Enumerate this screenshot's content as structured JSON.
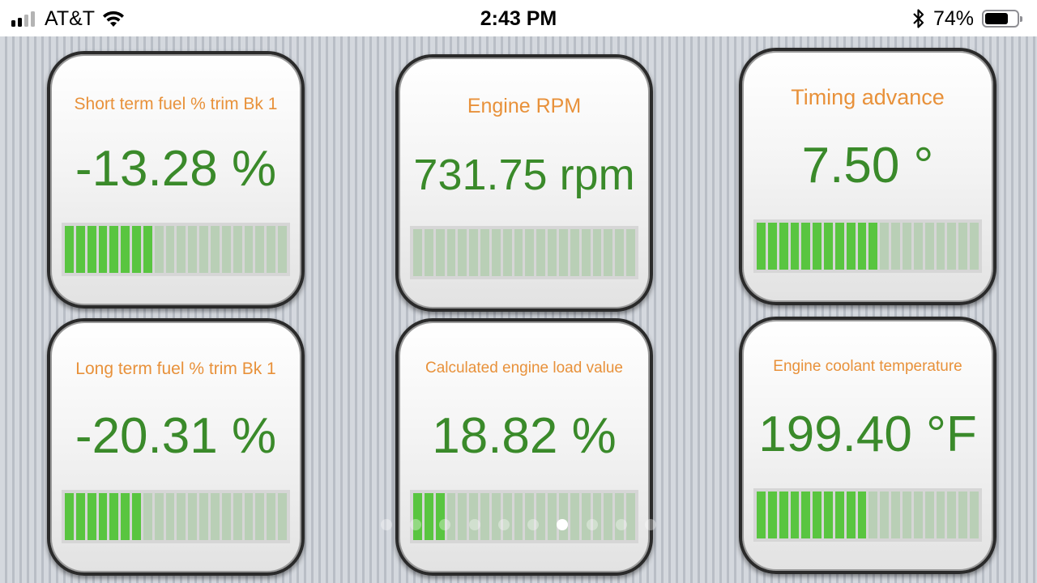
{
  "status_bar": {
    "carrier": "AT&T",
    "time": "2:43 PM",
    "battery_percent": "74%",
    "battery_level": 0.74,
    "signal_bars_active": 2,
    "icons": [
      "signal-icon",
      "wifi-icon",
      "bluetooth-icon",
      "battery-icon"
    ]
  },
  "colors": {
    "title_orange": "#e8913a",
    "value_green": "#3a8a2a",
    "bar_on": "#59c540",
    "bar_off": "#b9cfb6"
  },
  "gauges": [
    {
      "title": "Short term fuel % trim Bk 1",
      "value": "-13.28 %",
      "level_fraction": 0.39
    },
    {
      "title": "Engine RPM",
      "value": "731.75 rpm",
      "level_fraction": 0.0
    },
    {
      "title": "Timing advance",
      "value": "7.50 °",
      "level_fraction": 0.55
    },
    {
      "title": "Long term fuel % trim Bk 1",
      "value": "-20.31 %",
      "level_fraction": 0.33
    },
    {
      "title": "Calculated engine load value",
      "value": "18.82 %",
      "level_fraction": 0.15
    },
    {
      "title": "Engine coolant temperature",
      "value": "199.40 °F",
      "level_fraction": 0.5
    }
  ],
  "pagination": {
    "page_count": 10,
    "active_page_index": 6
  }
}
